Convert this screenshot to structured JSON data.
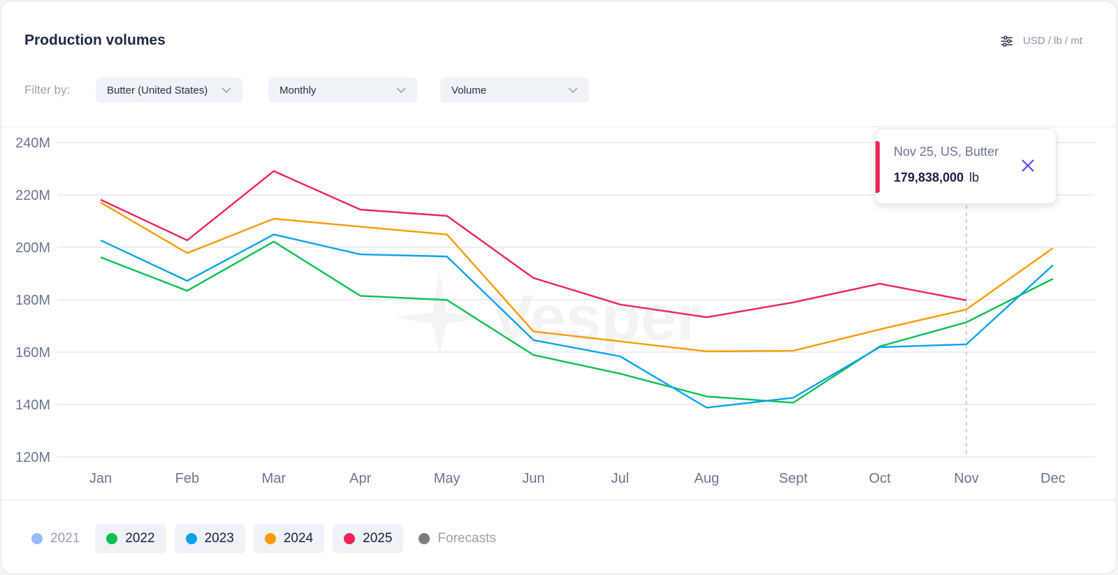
{
  "header": {
    "title": "Production volumes",
    "units_label": "USD / lb / mt",
    "units_icon": "sliders-icon"
  },
  "filters": {
    "label": "Filter by:",
    "product": "Butter (United States)",
    "frequency": "Monthly",
    "metric": "Volume"
  },
  "tooltip": {
    "title": "Nov 25, US, Butter",
    "value": "179,838,000",
    "unit": "lb",
    "color": "#f0225a"
  },
  "legend": [
    {
      "label": "2021",
      "color": "#93bdfb",
      "active": false
    },
    {
      "label": "2022",
      "color": "#0ac153",
      "active": true
    },
    {
      "label": "2023",
      "color": "#0aa2ef",
      "active": true
    },
    {
      "label": "2024",
      "color": "#fb9a05",
      "active": true
    },
    {
      "label": "2025",
      "color": "#f0225a",
      "active": true
    },
    {
      "label": "Forecasts",
      "color": "#7d7d7d",
      "active": false
    }
  ],
  "watermark": "Vesper",
  "chart_data": {
    "type": "line",
    "title": "Production volumes",
    "xlabel": "",
    "ylabel": "",
    "categories": [
      "Jan",
      "Feb",
      "Mar",
      "Apr",
      "May",
      "Jun",
      "Jul",
      "Aug",
      "Sept",
      "Oct",
      "Nov",
      "Dec"
    ],
    "y_ticks": [
      120,
      140,
      160,
      180,
      200,
      220,
      240
    ],
    "y_tick_labels": [
      "120M",
      "140M",
      "160M",
      "180M",
      "200M",
      "220M",
      "240M"
    ],
    "ylim": [
      120,
      240
    ],
    "y_unit": "million lb",
    "grid": true,
    "highlight": {
      "category": "Nov",
      "series": "2025",
      "value": 179.838
    },
    "series": [
      {
        "name": "2022",
        "color": "#0ac153",
        "values": [
          196.2,
          183.4,
          202.2,
          181.5,
          179.9,
          158.9,
          151.8,
          143.1,
          140.7,
          162.2,
          171.4,
          188.0
        ]
      },
      {
        "name": "2023",
        "color": "#0aa2ef",
        "values": [
          202.7,
          187.2,
          204.9,
          197.3,
          196.5,
          164.6,
          158.4,
          138.8,
          142.6,
          161.9,
          163.0,
          193.2
        ]
      },
      {
        "name": "2024",
        "color": "#fb9a05",
        "values": [
          217.1,
          197.8,
          210.9,
          207.9,
          204.9,
          167.9,
          164.1,
          160.3,
          160.5,
          168.7,
          176.3,
          199.7
        ]
      },
      {
        "name": "2025",
        "color": "#f0225a",
        "values": [
          218.2,
          202.7,
          229.1,
          214.4,
          212.0,
          188.3,
          178.2,
          173.3,
          179.0,
          186.1,
          179.8,
          null
        ]
      }
    ]
  }
}
